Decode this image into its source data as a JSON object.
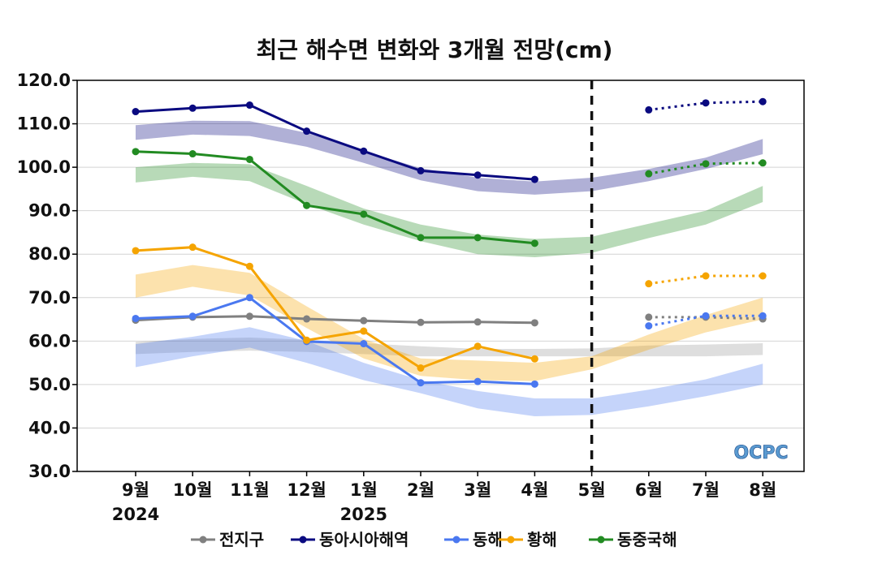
{
  "chart_data": {
    "type": "line",
    "title": "최근 해수면 변화와 3개월 전망(cm)",
    "xlabel": "",
    "ylabel": "",
    "categories": [
      "9월",
      "10월",
      "11월",
      "12월",
      "1월",
      "2월",
      "3월",
      "4월",
      "5월",
      "6월",
      "7월",
      "8월"
    ],
    "year_labels": [
      {
        "text": "2024",
        "index": 0
      },
      {
        "text": "2025",
        "index": 4
      }
    ],
    "ylim": [
      30,
      120
    ],
    "yticks": [
      "30.0",
      "40.0",
      "50.0",
      "60.0",
      "70.0",
      "80.0",
      "90.0",
      "100.0",
      "110.0",
      "120.0"
    ],
    "grid": true,
    "legend_position": "bottom",
    "forecast_divider_index": 8,
    "series": [
      {
        "name": "전지구",
        "color": "#808080",
        "values": [
          64.8,
          65.5,
          65.7,
          65.1,
          64.7,
          64.3,
          64.4,
          64.2,
          null,
          null,
          null,
          null
        ],
        "forecast": [
          null,
          null,
          null,
          null,
          null,
          null,
          null,
          null,
          null,
          65.5,
          65.5,
          65.1
        ],
        "band_upper": [
          59.8,
          60.5,
          60.8,
          60.3,
          59.5,
          58.8,
          58.2,
          58.2,
          58.3,
          59.0,
          59.2,
          59.5
        ],
        "band_lower": [
          57.0,
          57.5,
          57.8,
          57.5,
          57.0,
          56.5,
          56.5,
          56.5,
          56.5,
          56.5,
          56.5,
          56.8
        ]
      },
      {
        "name": "동아시아해역",
        "color": "#0a0a80",
        "values": [
          112.8,
          113.6,
          114.3,
          108.3,
          103.7,
          99.2,
          98.2,
          97.2,
          null,
          null,
          null,
          null
        ],
        "forecast": [
          null,
          null,
          null,
          null,
          null,
          null,
          null,
          null,
          null,
          113.2,
          114.8,
          115.1
        ],
        "band_upper": [
          109.7,
          110.7,
          110.6,
          107.9,
          103.7,
          99.8,
          97.6,
          96.7,
          97.6,
          99.6,
          102.2,
          106.5
        ],
        "band_lower": [
          106.3,
          107.5,
          107.2,
          104.7,
          101.0,
          97.0,
          94.5,
          93.7,
          94.5,
          96.8,
          99.6,
          103.0
        ]
      },
      {
        "name": "동해",
        "color": "#4a78f0",
        "values": [
          65.2,
          65.7,
          70.0,
          59.9,
          59.4,
          50.4,
          50.7,
          50.1,
          null,
          null,
          null,
          null
        ],
        "forecast": [
          null,
          null,
          null,
          null,
          null,
          null,
          null,
          null,
          null,
          63.5,
          65.8,
          65.8
        ],
        "band_upper": [
          59.3,
          61.0,
          63.2,
          60.0,
          55.0,
          51.0,
          48.5,
          46.8,
          46.8,
          48.8,
          51.2,
          54.8
        ],
        "band_lower": [
          54.0,
          56.5,
          58.5,
          55.0,
          51.0,
          48.0,
          44.5,
          42.7,
          43.0,
          45.0,
          47.3,
          50.0
        ]
      },
      {
        "name": "황해",
        "color": "#f5a400",
        "values": [
          80.8,
          81.6,
          77.2,
          60.2,
          62.3,
          53.8,
          58.8,
          55.9,
          null,
          null,
          null,
          null
        ],
        "forecast": [
          null,
          null,
          null,
          null,
          null,
          null,
          null,
          null,
          null,
          73.2,
          75.0,
          75.0
        ],
        "band_upper": [
          75.3,
          77.5,
          75.7,
          68.0,
          60.5,
          56.0,
          55.5,
          55.0,
          56.5,
          61.5,
          66.0,
          70.0
        ],
        "band_lower": [
          70.0,
          72.5,
          70.5,
          63.0,
          56.0,
          52.0,
          51.0,
          50.8,
          53.5,
          58.0,
          62.0,
          65.0
        ]
      },
      {
        "name": "동중국해",
        "color": "#228b22",
        "values": [
          103.6,
          103.1,
          101.8,
          91.2,
          89.2,
          83.8,
          83.8,
          82.5,
          null,
          null,
          null,
          null
        ],
        "forecast": [
          null,
          null,
          null,
          null,
          null,
          null,
          null,
          null,
          null,
          98.5,
          100.8,
          101.0
        ],
        "band_upper": [
          100.0,
          101.0,
          100.7,
          95.7,
          90.5,
          86.8,
          84.5,
          83.5,
          84.0,
          87.0,
          90.0,
          95.7
        ],
        "band_lower": [
          96.5,
          97.8,
          96.8,
          91.5,
          86.8,
          83.0,
          80.0,
          79.3,
          80.3,
          83.7,
          86.8,
          92.0
        ]
      }
    ],
    "logo": "OCPC"
  }
}
